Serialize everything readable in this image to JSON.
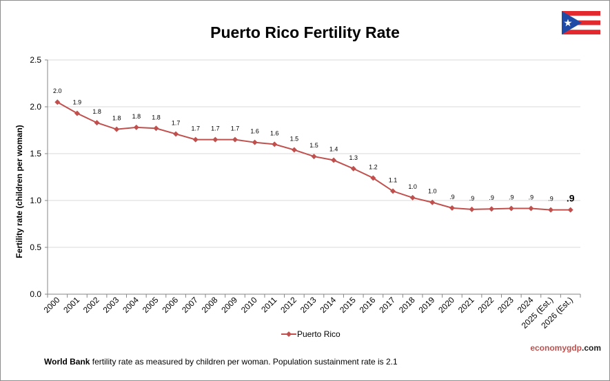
{
  "title": "Puerto Rico Fertility Rate",
  "footer": {
    "bold": "World Bank",
    "text": " fertility rate as measured by children per woman.  Population sustainment rate is 2.1"
  },
  "brand": {
    "part1": "economygdp",
    "part2": ".com"
  },
  "flag_icon": "puerto-rico-flag-icon",
  "colors": {
    "series": "#c0504d",
    "grid": "#d9d9d9",
    "axis": "#868686",
    "flag_red": "#e4292e",
    "flag_blue": "#1f4ba7"
  },
  "chart_data": {
    "type": "line",
    "title": "Puerto Rico Fertility Rate",
    "ylabel": "Fertility rate (children per woman)",
    "xlabel": "",
    "ylim": [
      0,
      2.5
    ],
    "yticks": [
      "0.0",
      "0.5",
      "1.0",
      "1.5",
      "2.0",
      "2.5"
    ],
    "grid": true,
    "legend": "bottom-center",
    "categories": [
      "2000",
      "2001",
      "2002",
      "2003",
      "2004",
      "2005",
      "2006",
      "2007",
      "2008",
      "2009",
      "2010",
      "2011",
      "2012",
      "2013",
      "2014",
      "2015",
      "2016",
      "2017",
      "2018",
      "2019",
      "2020",
      "2021",
      "2022",
      "2023",
      "2024",
      "2025 (Est.)",
      "2026 (Est.)"
    ],
    "series": [
      {
        "name": "Puerto Rico",
        "values": [
          2.05,
          1.93,
          1.83,
          1.76,
          1.78,
          1.77,
          1.71,
          1.65,
          1.65,
          1.65,
          1.62,
          1.6,
          1.54,
          1.47,
          1.43,
          1.34,
          1.24,
          1.1,
          1.03,
          0.98,
          0.92,
          0.905,
          0.91,
          0.915,
          0.915,
          0.9,
          0.9
        ],
        "labels": [
          "2.0",
          "1.9",
          "1.8",
          "1.8",
          "1.8",
          "1.8",
          "1.7",
          "1.7",
          "1.7",
          "1.7",
          "1.6",
          "1.6",
          "1.5",
          "1.5",
          "1.4",
          "1.3",
          "1.2",
          "1.1",
          "1.0",
          "1.0",
          ".9",
          ".9",
          ".9",
          ".9",
          ".9",
          ".9",
          ".9"
        ]
      }
    ]
  }
}
